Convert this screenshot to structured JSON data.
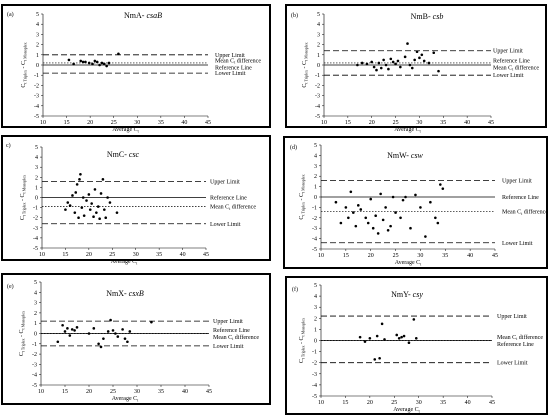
{
  "chart_data": [
    {
      "type": "scatter",
      "panel_label": "(a)",
      "title_prefix": "NmA- ",
      "title_gene": "csaB",
      "xlabel": "Average C",
      "xlabel_sub": "t",
      "ylabel_main": "C",
      "ylabel_sub1": "t Triplex",
      "ylabel_mid": " - C",
      "ylabel_sub2": "t Monoplex",
      "xlim": [
        10,
        45
      ],
      "ylim": [
        -5,
        5
      ],
      "xticks": [
        10,
        15,
        20,
        25,
        30,
        35,
        40,
        45
      ],
      "yticks": [
        -5,
        -4,
        -3,
        -2,
        -1,
        0,
        1,
        2,
        3,
        4,
        5
      ],
      "upper_limit": 1.0,
      "mean_diff": 0.2,
      "reference": 0,
      "lower_limit": -0.8,
      "line_labels": {
        "upper": "Upper Limit",
        "mean_a": "Mean C",
        "mean_sub": "t",
        "mean_b": " difference",
        "reference": "Reference Line",
        "lower": "Lower Limit"
      },
      "points": [
        [
          15.5,
          0.5
        ],
        [
          16.5,
          0.1
        ],
        [
          18,
          0.4
        ],
        [
          18.5,
          0.3
        ],
        [
          19,
          0.3
        ],
        [
          19.8,
          0.2
        ],
        [
          20.5,
          0.1
        ],
        [
          21,
          0.4
        ],
        [
          21.5,
          0.3
        ],
        [
          22,
          0.0
        ],
        [
          22.5,
          0.2
        ],
        [
          23,
          0.1
        ],
        [
          23.5,
          -0.1
        ],
        [
          24,
          0.2
        ],
        [
          26,
          1.1
        ]
      ]
    },
    {
      "type": "scatter",
      "panel_label": "(b)",
      "title_prefix": "NmB- ",
      "title_gene": "csb",
      "xlabel": "Average C",
      "xlabel_sub": "t",
      "ylabel_main": "C",
      "ylabel_sub1": "t Triplex",
      "ylabel_mid": " - C",
      "ylabel_sub2": "t Monoplex",
      "xlim": [
        10,
        45
      ],
      "ylim": [
        -5,
        5
      ],
      "xticks": [
        10,
        15,
        20,
        25,
        30,
        35,
        40,
        45
      ],
      "yticks": [
        -5,
        -4,
        -3,
        -2,
        -1,
        0,
        1,
        2,
        3,
        4,
        5
      ],
      "upper_limit": 1.4,
      "mean_diff": 0.2,
      "reference": 0,
      "lower_limit": -1.0,
      "line_labels": {
        "upper": "Upper Limit",
        "reference": "Reference Line",
        "mean_a": "Mean C",
        "mean_sub": "t",
        "mean_b": " difference",
        "lower": "Lower Limit"
      },
      "points": [
        [
          17,
          0.0
        ],
        [
          18,
          0.2
        ],
        [
          19,
          0.1
        ],
        [
          20,
          0.3
        ],
        [
          20.5,
          -0.2
        ],
        [
          21,
          -0.5
        ],
        [
          21.5,
          0.2
        ],
        [
          22,
          -0.3
        ],
        [
          22.5,
          0.5
        ],
        [
          23,
          0.0
        ],
        [
          23.5,
          -0.4
        ],
        [
          24,
          0.6
        ],
        [
          24.5,
          0.3
        ],
        [
          25,
          0.1
        ],
        [
          25.5,
          0.4
        ],
        [
          26,
          -0.2
        ],
        [
          27,
          0.8
        ],
        [
          27.5,
          2.1
        ],
        [
          28,
          0.0
        ],
        [
          28.5,
          -0.3
        ],
        [
          29,
          0.5
        ],
        [
          29.5,
          1.3
        ],
        [
          30,
          0.7
        ],
        [
          30.5,
          1.0
        ],
        [
          31,
          0.4
        ],
        [
          32,
          0.2
        ],
        [
          33,
          1.2
        ],
        [
          34,
          -0.6
        ]
      ]
    },
    {
      "type": "scatter",
      "panel_label": "c)",
      "title_prefix": "NmC- ",
      "title_gene": "csc",
      "xlabel": "Average C",
      "xlabel_sub": "t",
      "ylabel_main": "C",
      "ylabel_sub1": "t Triplex",
      "ylabel_mid": " - C",
      "ylabel_sub2": "t Monoplex",
      "xlim": [
        10,
        45
      ],
      "ylim": [
        -5,
        5
      ],
      "xticks": [
        10,
        15,
        20,
        25,
        30,
        35,
        40,
        45
      ],
      "yticks": [
        -5,
        -4,
        -3,
        -2,
        -1,
        0,
        1,
        2,
        3,
        4,
        5
      ],
      "upper_limit": 1.6,
      "mean_diff": -0.9,
      "reference": 0,
      "lower_limit": -2.6,
      "line_labels": {
        "upper": "Upper Limit",
        "reference": "Reference Line",
        "mean_a": "Mean C",
        "mean_sub": "t",
        "mean_b": " difference",
        "lower": "Lower Limit"
      },
      "points": [
        [
          15,
          -1.2
        ],
        [
          15.5,
          -0.5
        ],
        [
          16,
          -0.8
        ],
        [
          16.5,
          0.2
        ],
        [
          17,
          -1.5
        ],
        [
          17.2,
          0.5
        ],
        [
          17.5,
          1.3
        ],
        [
          17.8,
          -2.0
        ],
        [
          18,
          1.8
        ],
        [
          18.2,
          2.3
        ],
        [
          18.5,
          -1.0
        ],
        [
          18.8,
          0.0
        ],
        [
          19,
          -1.8
        ],
        [
          19.5,
          -0.3
        ],
        [
          20,
          0.3
        ],
        [
          20.3,
          -1.2
        ],
        [
          20.6,
          -0.6
        ],
        [
          21,
          -1.9
        ],
        [
          21.3,
          0.8
        ],
        [
          21.6,
          -1.5
        ],
        [
          22,
          -0.9
        ],
        [
          22.3,
          -2.1
        ],
        [
          22.6,
          0.4
        ],
        [
          23,
          1.8
        ],
        [
          23.3,
          -1.2
        ],
        [
          23.6,
          -2.0
        ],
        [
          24,
          0.0
        ],
        [
          24.5,
          -0.5
        ],
        [
          26,
          -1.5
        ]
      ]
    },
    {
      "type": "scatter",
      "panel_label": "(d)",
      "title_prefix": "NmW- ",
      "title_gene": "csw",
      "xlabel": "Average C",
      "xlabel_sub": "t",
      "ylabel_main": "C",
      "ylabel_sub1": "t Triplex",
      "ylabel_mid": " - C",
      "ylabel_sub2": "t Monoplex",
      "xlim": [
        10,
        45
      ],
      "ylim": [
        -5,
        5
      ],
      "xticks": [
        10,
        15,
        20,
        25,
        30,
        35,
        40,
        45
      ],
      "yticks": [
        -5,
        -4,
        -3,
        -2,
        -1,
        0,
        1,
        2,
        3,
        4,
        5
      ],
      "upper_limit": 1.6,
      "mean_diff": -1.4,
      "reference": 0,
      "lower_limit": -4.4,
      "line_labels": {
        "upper": "Upper Limit",
        "reference": "Reference Line",
        "mean_a": "Mean C",
        "mean_sub": "t",
        "mean_b": " difference",
        "lower": "Lower Limit"
      },
      "points": [
        [
          13,
          -0.5
        ],
        [
          14,
          -2.5
        ],
        [
          15,
          -1.0
        ],
        [
          15.5,
          -2.0
        ],
        [
          16,
          0.5
        ],
        [
          16.5,
          -1.5
        ],
        [
          17,
          -2.8
        ],
        [
          17.5,
          -0.8
        ],
        [
          18,
          -1.2
        ],
        [
          19,
          -2.0
        ],
        [
          19.5,
          -2.5
        ],
        [
          20,
          -0.2
        ],
        [
          20.5,
          -3.0
        ],
        [
          21,
          -1.8
        ],
        [
          21.5,
          -3.5
        ],
        [
          22,
          0.3
        ],
        [
          22.5,
          -2.2
        ],
        [
          23,
          -1.0
        ],
        [
          23.5,
          -3.2
        ],
        [
          24,
          -2.8
        ],
        [
          24.5,
          0.0
        ],
        [
          25,
          -1.5
        ],
        [
          26,
          -2.0
        ],
        [
          26.5,
          -0.3
        ],
        [
          27,
          0.0
        ],
        [
          28,
          -3.0
        ],
        [
          29,
          0.2
        ],
        [
          30,
          -1.0
        ],
        [
          31,
          -3.8
        ],
        [
          32,
          -0.5
        ],
        [
          33,
          -2.0
        ],
        [
          33.5,
          -2.5
        ],
        [
          34,
          1.2
        ],
        [
          34.5,
          0.8
        ]
      ]
    },
    {
      "type": "scatter",
      "panel_label": "(e)",
      "title_prefix": "NmX- ",
      "title_gene": "csxB",
      "xlabel": "Average C",
      "xlabel_sub": "t",
      "ylabel_main": "C",
      "ylabel_sub1": "t Triplex",
      "ylabel_mid": " - C",
      "ylabel_sub2": "t Monoplex",
      "xlim": [
        10,
        45
      ],
      "ylim": [
        -5,
        5
      ],
      "xticks": [
        10,
        15,
        20,
        25,
        30,
        35,
        40,
        45
      ],
      "yticks": [
        -5,
        -4,
        -3,
        -2,
        -1,
        0,
        1,
        2,
        3,
        4,
        5
      ],
      "upper_limit": 1.2,
      "mean_diff": 0.0,
      "reference": 0,
      "lower_limit": -1.2,
      "line_labels": {
        "upper": "Upper Limit",
        "reference": "Reference Line",
        "mean_a": "Mean C",
        "mean_sub": "t",
        "mean_b": " difference",
        "lower": "Lower Limit"
      },
      "points": [
        [
          13.5,
          -0.8
        ],
        [
          14.5,
          0.8
        ],
        [
          15,
          0.2
        ],
        [
          15.5,
          0.5
        ],
        [
          16,
          -0.2
        ],
        [
          16.5,
          0.4
        ],
        [
          17,
          0.3
        ],
        [
          17.5,
          0.6
        ],
        [
          20,
          0.0
        ],
        [
          21,
          0.5
        ],
        [
          22,
          -1.0
        ],
        [
          22.5,
          -1.3
        ],
        [
          23,
          -0.5
        ],
        [
          24,
          0.2
        ],
        [
          24.5,
          1.3
        ],
        [
          25,
          0.3
        ],
        [
          25.5,
          0.0
        ],
        [
          26,
          -0.3
        ],
        [
          27,
          0.4
        ],
        [
          27.5,
          -0.5
        ],
        [
          28,
          -0.8
        ],
        [
          28.5,
          0.2
        ],
        [
          33,
          1.1
        ]
      ]
    },
    {
      "type": "scatter",
      "panel_label": "(f)",
      "title_prefix": "NmY- ",
      "title_gene": "csy",
      "xlabel": "Average C",
      "xlabel_sub": "t",
      "ylabel_main": "C",
      "ylabel_sub1": "t Triplex",
      "ylabel_mid": " - C",
      "ylabel_sub2": "t Monoplex",
      "xlim": [
        10,
        45
      ],
      "ylim": [
        -5,
        5
      ],
      "xticks": [
        10,
        15,
        20,
        25,
        30,
        35,
        40,
        45
      ],
      "yticks": [
        -5,
        -4,
        -3,
        -2,
        -1,
        0,
        1,
        2,
        3,
        4,
        5
      ],
      "upper_limit": 2.2,
      "mean_diff": 0.0,
      "reference": 0,
      "lower_limit": -2.0,
      "line_labels": {
        "upper": "Upper Limit",
        "mean_a": "Mean C",
        "mean_sub": "t",
        "mean_b": " difference",
        "reference": "Reference Line",
        "lower": "Lower Limit"
      },
      "points": [
        [
          18,
          0.3
        ],
        [
          19,
          -0.1
        ],
        [
          20,
          0.2
        ],
        [
          21,
          -1.7
        ],
        [
          21.5,
          0.4
        ],
        [
          22,
          -1.6
        ],
        [
          22.5,
          1.5
        ],
        [
          23,
          0.1
        ],
        [
          25.5,
          0.5
        ],
        [
          26,
          0.2
        ],
        [
          26.5,
          0.3
        ],
        [
          27,
          0.4
        ],
        [
          28,
          -0.2
        ],
        [
          29,
          1.9
        ],
        [
          29.5,
          0.2
        ]
      ]
    }
  ]
}
